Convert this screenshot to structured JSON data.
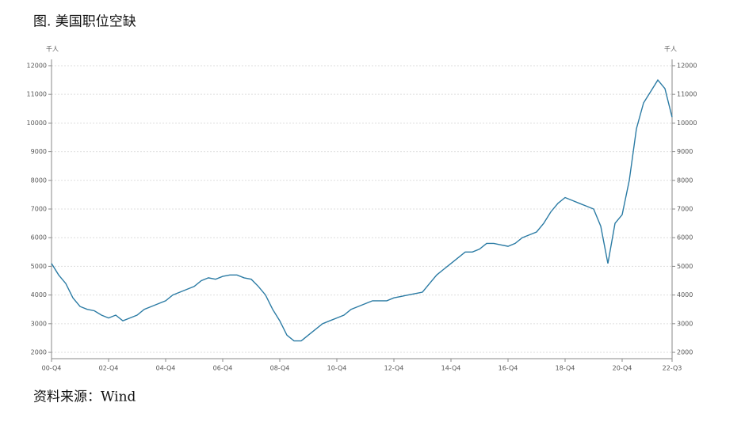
{
  "chart_data": {
    "type": "line",
    "title": "图. 美国职位空缺",
    "source": "资料来源：Wind",
    "unit": "千人",
    "categories": [
      "00-Q4",
      null,
      null,
      null,
      null,
      null,
      null,
      null,
      "02-Q4",
      null,
      null,
      null,
      null,
      null,
      null,
      null,
      "04-Q4",
      null,
      null,
      null,
      null,
      null,
      null,
      null,
      "06-Q4",
      null,
      null,
      null,
      null,
      null,
      null,
      null,
      "08-Q4",
      null,
      null,
      null,
      null,
      null,
      null,
      null,
      "10-Q4",
      null,
      null,
      null,
      null,
      null,
      null,
      null,
      "12-Q4",
      null,
      null,
      null,
      null,
      null,
      null,
      null,
      "14-Q4",
      null,
      null,
      null,
      null,
      null,
      null,
      null,
      "16-Q4",
      null,
      null,
      null,
      null,
      null,
      null,
      null,
      "18-Q4",
      null,
      null,
      null,
      null,
      null,
      null,
      null,
      "20-Q4",
      null,
      null,
      null,
      null,
      null,
      null,
      "22-Q3"
    ],
    "values": [
      5100,
      4700,
      4400,
      3900,
      3600,
      3500,
      3450,
      3300,
      3200,
      3300,
      3100,
      3200,
      3300,
      3500,
      3600,
      3700,
      3800,
      4000,
      4100,
      4200,
      4300,
      4500,
      4600,
      4550,
      4650,
      4700,
      4700,
      4600,
      4550,
      4300,
      4000,
      3500,
      3100,
      2600,
      2400,
      2400,
      2600,
      2800,
      3000,
      3100,
      3200,
      3300,
      3500,
      3600,
      3700,
      3800,
      3800,
      3800,
      3900,
      3950,
      4000,
      4050,
      4100,
      4400,
      4700,
      4900,
      5100,
      5300,
      5500,
      5500,
      5600,
      5800,
      5800,
      5750,
      5700,
      5800,
      6000,
      6100,
      6200,
      6500,
      6900,
      7200,
      7400,
      7300,
      7200,
      7100,
      7000,
      6400,
      5100,
      6500,
      6800,
      8000,
      9800,
      10700,
      11100,
      11500,
      11200,
      10200
    ],
    "color": "#2b7ba4",
    "ylim": [
      1780,
      12220
    ],
    "yticks": [
      2000,
      3000,
      4000,
      5000,
      6000,
      7000,
      8000,
      9000,
      10000,
      11000,
      12000
    ],
    "grid": true
  }
}
